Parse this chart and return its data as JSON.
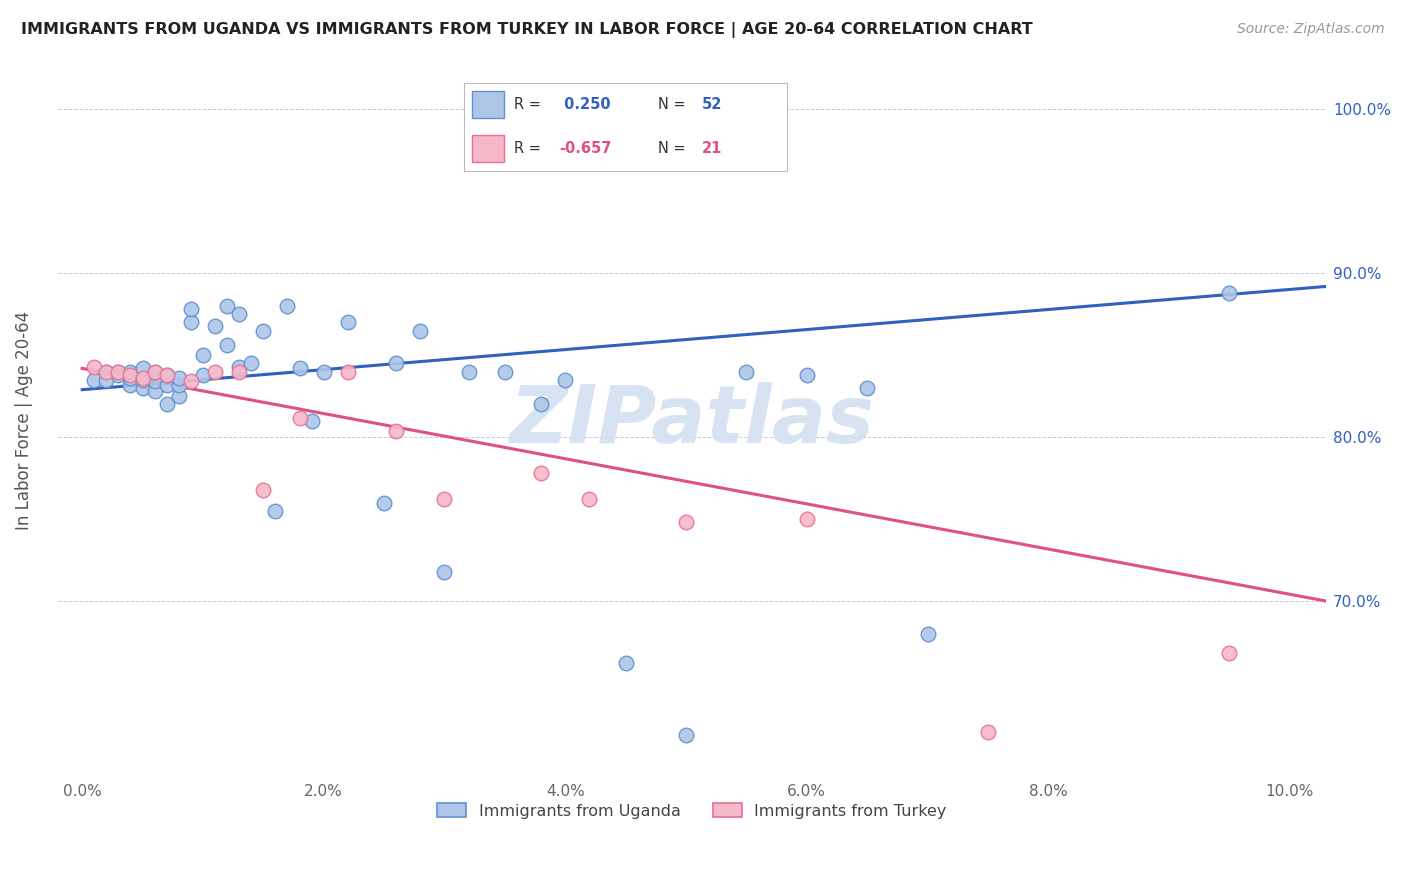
{
  "title": "IMMIGRANTS FROM UGANDA VS IMMIGRANTS FROM TURKEY IN LABOR FORCE | AGE 20-64 CORRELATION CHART",
  "source": "Source: ZipAtlas.com",
  "ylabel": "In Labor Force | Age 20-64",
  "xlim": [
    -0.002,
    0.103
  ],
  "ylim": [
    0.595,
    1.025
  ],
  "xticks": [
    0.0,
    0.02,
    0.04,
    0.06,
    0.08,
    0.1
  ],
  "xticklabels": [
    "0.0%",
    "2.0%",
    "4.0%",
    "6.0%",
    "8.0%",
    "10.0%"
  ],
  "yticks": [
    0.7,
    0.8,
    0.9,
    1.0
  ],
  "yticklabels": [
    "70.0%",
    "80.0%",
    "90.0%",
    "100.0%"
  ],
  "uganda_color": "#adc6e8",
  "turkey_color": "#f5b8c8",
  "uganda_edge_color": "#6090d0",
  "turkey_edge_color": "#e87090",
  "uganda_line_color": "#3060c0",
  "turkey_line_color": "#e05080",
  "watermark": "ZIPatlas",
  "watermark_color": "#d0dff0",
  "uganda_x": [
    0.001,
    0.002,
    0.002,
    0.003,
    0.003,
    0.004,
    0.004,
    0.004,
    0.005,
    0.005,
    0.005,
    0.006,
    0.006,
    0.006,
    0.007,
    0.007,
    0.007,
    0.008,
    0.008,
    0.008,
    0.009,
    0.009,
    0.01,
    0.01,
    0.011,
    0.012,
    0.012,
    0.013,
    0.013,
    0.014,
    0.015,
    0.016,
    0.017,
    0.018,
    0.019,
    0.02,
    0.022,
    0.025,
    0.026,
    0.028,
    0.03,
    0.032,
    0.035,
    0.038,
    0.04,
    0.045,
    0.05,
    0.055,
    0.06,
    0.065,
    0.07,
    0.095
  ],
  "uganda_y": [
    0.835,
    0.84,
    0.835,
    0.84,
    0.838,
    0.832,
    0.836,
    0.84,
    0.83,
    0.835,
    0.842,
    0.828,
    0.834,
    0.84,
    0.82,
    0.832,
    0.838,
    0.825,
    0.832,
    0.836,
    0.87,
    0.878,
    0.85,
    0.838,
    0.868,
    0.88,
    0.856,
    0.843,
    0.875,
    0.845,
    0.865,
    0.755,
    0.88,
    0.842,
    0.81,
    0.84,
    0.87,
    0.76,
    0.845,
    0.865,
    0.718,
    0.84,
    0.84,
    0.82,
    0.835,
    0.662,
    0.618,
    0.84,
    0.838,
    0.83,
    0.68,
    0.888
  ],
  "turkey_x": [
    0.001,
    0.002,
    0.003,
    0.004,
    0.005,
    0.006,
    0.007,
    0.009,
    0.011,
    0.013,
    0.015,
    0.018,
    0.022,
    0.026,
    0.03,
    0.038,
    0.042,
    0.05,
    0.06,
    0.075,
    0.095
  ],
  "turkey_y": [
    0.843,
    0.84,
    0.84,
    0.838,
    0.836,
    0.84,
    0.838,
    0.834,
    0.84,
    0.84,
    0.768,
    0.812,
    0.84,
    0.804,
    0.762,
    0.778,
    0.762,
    0.748,
    0.75,
    0.62,
    0.668
  ],
  "uganda_trend_x0": 0.0,
  "uganda_trend_x1": 0.103,
  "uganda_trend_y0": 0.829,
  "uganda_trend_y1": 0.892,
  "turkey_trend_x0": 0.0,
  "turkey_trend_x1": 0.103,
  "turkey_trend_y0": 0.842,
  "turkey_trend_y1": 0.7
}
